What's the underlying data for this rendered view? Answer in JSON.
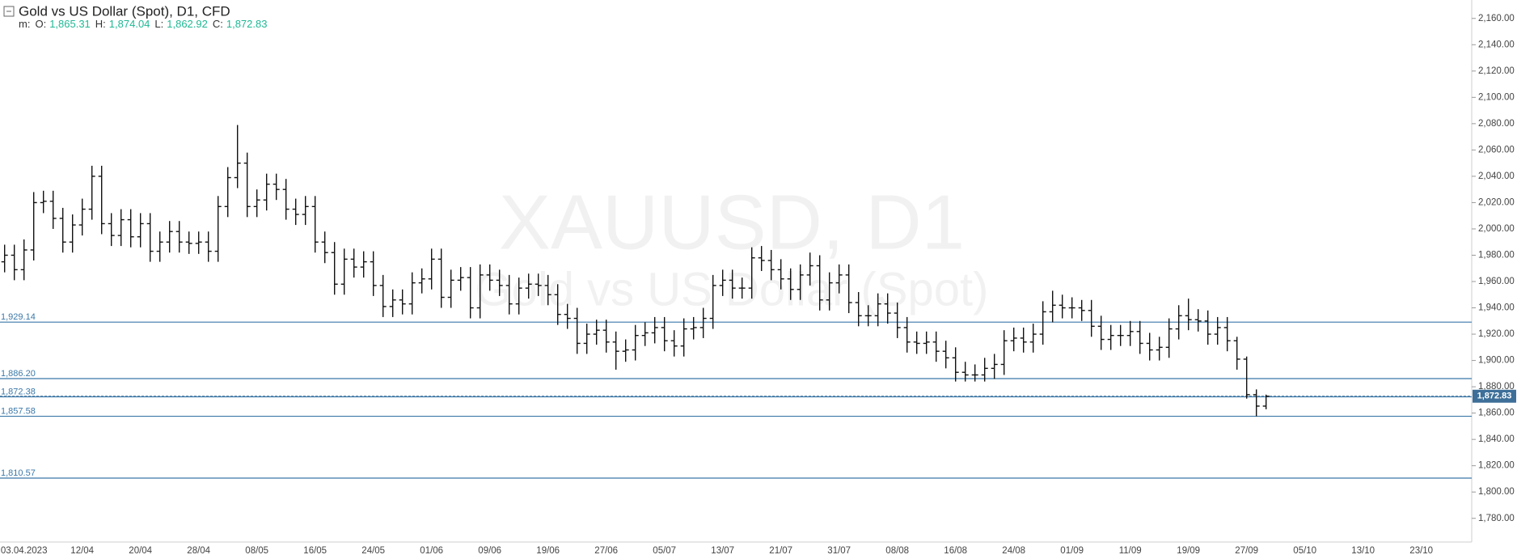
{
  "chart_data": {
    "type": "ohlc",
    "title": "Gold vs US Dollar (Spot),  D1,  CFD",
    "header_prefix": "m:",
    "header_values": [
      {
        "label": "O:",
        "value": "1,865.31"
      },
      {
        "label": "H:",
        "value": "1,874.04"
      },
      {
        "label": "L:",
        "value": "1,862.92"
      },
      {
        "label": "C:",
        "value": "1,872.83"
      }
    ],
    "watermark": {
      "symbol": "XAUUSD, D1",
      "description": "Gold vs US Dollar (Spot)"
    },
    "categories": [
      null,
      null,
      "03.04.2023",
      null,
      null,
      null,
      null,
      null,
      "12/04",
      null,
      null,
      null,
      null,
      null,
      "20/04",
      null,
      null,
      null,
      null,
      null,
      "28/04",
      null,
      null,
      null,
      null,
      null,
      "08/05",
      null,
      null,
      null,
      null,
      null,
      "16/05",
      null,
      null,
      null,
      null,
      null,
      "24/05",
      null,
      null,
      null,
      null,
      null,
      "01/06",
      null,
      null,
      null,
      null,
      null,
      "09/06",
      null,
      null,
      null,
      null,
      null,
      "19/06",
      null,
      null,
      null,
      null,
      null,
      "27/06",
      null,
      null,
      null,
      null,
      null,
      "05/07",
      null,
      null,
      null,
      null,
      null,
      "13/07",
      null,
      null,
      null,
      null,
      null,
      "21/07",
      null,
      null,
      null,
      null,
      null,
      "31/07",
      null,
      null,
      null,
      null,
      null,
      "08/08",
      null,
      null,
      null,
      null,
      null,
      "16/08",
      null,
      null,
      null,
      null,
      null,
      "24/08",
      null,
      null,
      null,
      null,
      null,
      "01/09",
      null,
      null,
      null,
      null,
      null,
      "11/09",
      null,
      null,
      null,
      null,
      null,
      "19/09",
      null,
      null,
      null,
      null,
      null,
      "27/09",
      null,
      null,
      null,
      null,
      null,
      "05/10",
      null,
      null,
      null,
      null,
      null,
      "13/10",
      null,
      null,
      null,
      null,
      null,
      "23/10"
    ],
    "open": [
      1975,
      1980,
      1969,
      1984,
      2020,
      2021,
      2008,
      1990,
      2003,
      2015,
      2040,
      2004,
      1995,
      2007,
      1994,
      2004,
      1983,
      1990,
      1998,
      1990,
      1989,
      1990,
      1983,
      2017,
      2039,
      2050,
      2017,
      2022,
      2034,
      2030,
      2015,
      2011,
      2017,
      1990,
      1982,
      1958,
      1977,
      1971,
      1975,
      1957,
      1941,
      1946,
      1943,
      1959,
      1962,
      1977,
      1948,
      1961,
      1963,
      1940,
      1965,
      1961,
      1957,
      1943,
      1955,
      1958,
      1957,
      1950,
      1935,
      1932,
      1913,
      1920,
      1923,
      1914,
      1907,
      1908,
      1919,
      1921,
      1925,
      1915,
      1911,
      1924,
      1925,
      1932,
      1957,
      1961,
      1955,
      1955,
      1978,
      1976,
      1969,
      1962,
      1954,
      1965,
      1972,
      1946,
      1959,
      1965,
      1944,
      1934,
      1934,
      1943,
      1936,
      1925,
      1914,
      1913,
      1914,
      1907,
      1902,
      1891,
      1889,
      1889,
      1894,
      1897,
      1915,
      1917,
      1914,
      1920,
      1937,
      1942,
      1940,
      1940,
      1938,
      1926,
      1916,
      1919,
      1919,
      1922,
      1913,
      1908,
      1910,
      1924,
      1934,
      1931,
      1930,
      1920,
      1925,
      1915,
      1901,
      1874,
      1865.31,
      null,
      null,
      null,
      null,
      null,
      null,
      null,
      null,
      null,
      null,
      null,
      null,
      null,
      null,
      null,
      null
    ],
    "high": [
      1988,
      1988,
      1992,
      2028,
      2029,
      2029,
      2016,
      2011,
      2023,
      2048,
      2048,
      2012,
      2015,
      2015,
      2012,
      2012,
      1998,
      2006,
      2006,
      1998,
      1998,
      1998,
      2025,
      2047,
      2079,
      2058,
      2030,
      2042,
      2042,
      2038,
      2023,
      2025,
      2025,
      1998,
      1990,
      1985,
      1985,
      1983,
      1983,
      1965,
      1954,
      1954,
      1967,
      1970,
      1985,
      1985,
      1969,
      1971,
      1971,
      1973,
      1973,
      1969,
      1965,
      1963,
      1966,
      1966,
      1965,
      1958,
      1943,
      1940,
      1928,
      1931,
      1931,
      1922,
      1916,
      1927,
      1929,
      1933,
      1933,
      1923,
      1932,
      1933,
      1940,
      1965,
      1969,
      1969,
      1963,
      1986,
      1987,
      1984,
      1977,
      1970,
      1973,
      1982,
      1980,
      1967,
      1973,
      1973,
      1952,
      1942,
      1951,
      1951,
      1944,
      1933,
      1922,
      1922,
      1922,
      1915,
      1910,
      1899,
      1897,
      1902,
      1905,
      1923,
      1925,
      1925,
      1928,
      1945,
      1953,
      1950,
      1948,
      1946,
      1946,
      1934,
      1927,
      1927,
      1930,
      1930,
      1921,
      1918,
      1932,
      1942,
      1947,
      1939,
      1938,
      1933,
      1933,
      1918,
      1903,
      1878,
      1874.04,
      null,
      null,
      null,
      null,
      null,
      null,
      null,
      null,
      null,
      null,
      null,
      null,
      null,
      null,
      null,
      null
    ],
    "low": [
      1967,
      1961,
      1961,
      1976,
      2012,
      2000,
      1982,
      1982,
      1995,
      2007,
      1996,
      1987,
      1987,
      1986,
      1986,
      1975,
      1975,
      1982,
      1982,
      1981,
      1981,
      1975,
      1975,
      2009,
      2031,
      2009,
      2009,
      2014,
      2022,
      2007,
      2003,
      2003,
      1982,
      1974,
      1950,
      1950,
      1963,
      1963,
      1949,
      1933,
      1933,
      1935,
      1935,
      1951,
      1954,
      1940,
      1940,
      1953,
      1932,
      1932,
      1953,
      1949,
      1935,
      1935,
      1947,
      1949,
      1942,
      1927,
      1924,
      1905,
      1905,
      1912,
      1906,
      1893,
      1899,
      1900,
      1911,
      1913,
      1907,
      1903,
      1903,
      1916,
      1917,
      1924,
      1949,
      1947,
      1947,
      1947,
      1968,
      1961,
      1954,
      1946,
      1946,
      1957,
      1938,
      1938,
      1951,
      1936,
      1926,
      1926,
      1926,
      1928,
      1917,
      1906,
      1905,
      1905,
      1899,
      1894,
      1884,
      1884,
      1884,
      1884,
      1886,
      1889,
      1907,
      1906,
      1906,
      1912,
      1929,
      1932,
      1932,
      1930,
      1918,
      1908,
      1908,
      1911,
      1911,
      1905,
      1900,
      1900,
      1902,
      1916,
      1923,
      1922,
      1912,
      1912,
      1907,
      1893,
      1871,
      1857.58,
      1862.92,
      null,
      null,
      null,
      null,
      null,
      null,
      null,
      null,
      null,
      null,
      null,
      null,
      null,
      null,
      null,
      null
    ],
    "close": [
      1980,
      1969,
      1984,
      2020,
      2021,
      2008,
      1990,
      2003,
      2015,
      2040,
      2004,
      1995,
      2007,
      1994,
      2004,
      1983,
      1990,
      1998,
      1990,
      1989,
      1990,
      1983,
      2017,
      2039,
      2050,
      2017,
      2022,
      2034,
      2030,
      2015,
      2011,
      2017,
      1990,
      1982,
      1958,
      1977,
      1971,
      1975,
      1957,
      1941,
      1946,
      1943,
      1959,
      1962,
      1977,
      1948,
      1961,
      1963,
      1940,
      1965,
      1961,
      1957,
      1943,
      1955,
      1958,
      1957,
      1950,
      1935,
      1932,
      1913,
      1920,
      1923,
      1914,
      1907,
      1908,
      1919,
      1921,
      1925,
      1915,
      1911,
      1924,
      1925,
      1932,
      1957,
      1961,
      1955,
      1955,
      1978,
      1976,
      1969,
      1962,
      1954,
      1965,
      1972,
      1946,
      1959,
      1965,
      1944,
      1934,
      1934,
      1943,
      1936,
      1925,
      1914,
      1913,
      1914,
      1907,
      1902,
      1891,
      1889,
      1889,
      1894,
      1897,
      1915,
      1917,
      1914,
      1920,
      1937,
      1942,
      1940,
      1940,
      1938,
      1926,
      1916,
      1919,
      1919,
      1922,
      1913,
      1908,
      1910,
      1924,
      1934,
      1931,
      1930,
      1920,
      1925,
      1915,
      1901,
      1874,
      1865.31,
      1872.83,
      null,
      null,
      null,
      null,
      null,
      null,
      null,
      null,
      null,
      null,
      null,
      null,
      null,
      null,
      null,
      null
    ],
    "color": "#111111",
    "ylim": [
      1762,
      2174
    ],
    "yticks": [
      {
        "value": 1780,
        "label": "1,780.00"
      },
      {
        "value": 1800,
        "label": "1,800.00"
      },
      {
        "value": 1820,
        "label": "1,820.00"
      },
      {
        "value": 1840,
        "label": "1,840.00"
      },
      {
        "value": 1860,
        "label": "1,860.00"
      },
      {
        "value": 1880,
        "label": "1,880.00"
      },
      {
        "value": 1900,
        "label": "1,900.00"
      },
      {
        "value": 1920,
        "label": "1,920.00"
      },
      {
        "value": 1940,
        "label": "1,940.00"
      },
      {
        "value": 1960,
        "label": "1,960.00"
      },
      {
        "value": 1980,
        "label": "1,980.00"
      },
      {
        "value": 2000,
        "label": "2,000.00"
      },
      {
        "value": 2020,
        "label": "2,020.00"
      },
      {
        "value": 2040,
        "label": "2,040.00"
      },
      {
        "value": 2060,
        "label": "2,060.00"
      },
      {
        "value": 2080,
        "label": "2,080.00"
      },
      {
        "value": 2100,
        "label": "2,100.00"
      },
      {
        "value": 2120,
        "label": "2,120.00"
      },
      {
        "value": 2140,
        "label": "2,140.00"
      },
      {
        "value": 2160,
        "label": "2,160.00"
      }
    ],
    "levels": [
      {
        "value": 1929.14,
        "label": "1,929.14"
      },
      {
        "value": 1886.2,
        "label": "1,886.20"
      },
      {
        "value": 1872.38,
        "label": "1,872.38"
      },
      {
        "value": 1857.58,
        "label": "1,857.58"
      },
      {
        "value": 1810.57,
        "label": "1,810.57"
      }
    ],
    "level_color": "#3b78a8",
    "last_price": {
      "value": 1872.83,
      "label": "1,872.83"
    },
    "last_price_color": "#3d6f99"
  }
}
